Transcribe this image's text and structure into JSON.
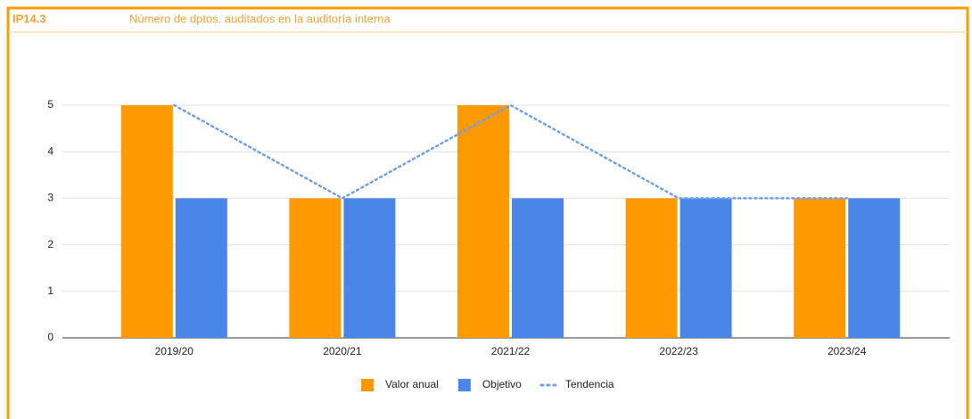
{
  "chart_data": {
    "type": "bar",
    "code": "IP14.3",
    "title": "Número de dptos. auditados en la auditoría interna",
    "categories": [
      "2019/20",
      "2020/21",
      "2021/22",
      "2022/23",
      "2023/24"
    ],
    "series": [
      {
        "name": "Valor anual",
        "color": "#ff9900",
        "type": "bar",
        "values": [
          5,
          3,
          5,
          3,
          3
        ]
      },
      {
        "name": "Objetivo",
        "color": "#4a86e8",
        "type": "bar",
        "values": [
          3,
          3,
          3,
          3,
          3
        ]
      },
      {
        "name": "Tendencia",
        "color": "#6d9eeb",
        "type": "line",
        "values": [
          5,
          3,
          5,
          3,
          3
        ]
      }
    ],
    "ylim": [
      0,
      5
    ],
    "yticks": [
      0,
      1,
      2,
      3,
      4,
      5
    ],
    "grid": true,
    "legend": "bottom"
  }
}
